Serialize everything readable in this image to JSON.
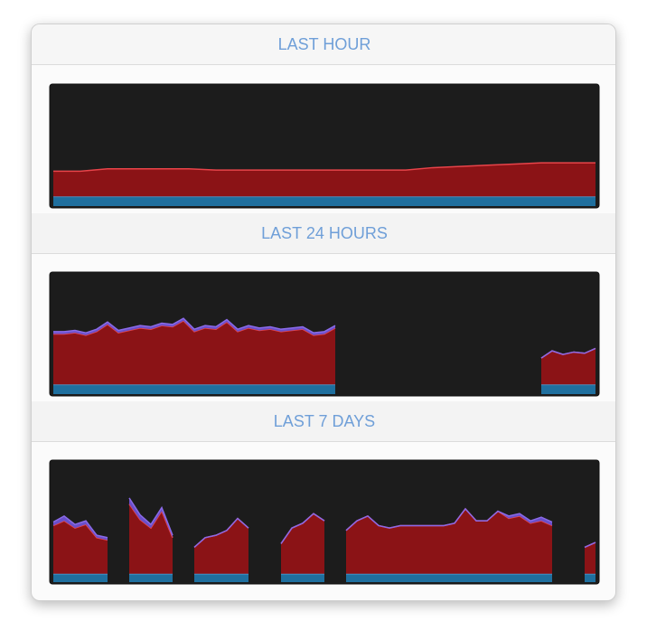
{
  "chart_data": [
    {
      "type": "area",
      "title": "LAST HOUR",
      "stacked": true,
      "ylim": [
        0,
        100
      ],
      "x": [
        0,
        5,
        10,
        15,
        20,
        25,
        30,
        35,
        40,
        45,
        50,
        55,
        60,
        65,
        70,
        75,
        80,
        85,
        90,
        95,
        100
      ],
      "series": [
        {
          "color": "#1f6f9e",
          "line_color": "#4aa3d9",
          "values": [
            8,
            8,
            8,
            8,
            8,
            8,
            8,
            8,
            8,
            8,
            8,
            8,
            8,
            8,
            8,
            8,
            8,
            8,
            8,
            8,
            8
          ]
        },
        {
          "color": "#8b1316",
          "line_color": "#e8444a",
          "values": [
            21,
            21,
            23,
            23,
            23,
            23,
            22,
            22,
            22,
            22,
            22,
            22,
            22,
            22,
            24,
            25,
            26,
            27,
            28,
            28,
            28
          ]
        }
      ]
    },
    {
      "type": "area",
      "title": "LAST 24 HOURS",
      "stacked": true,
      "ylim": [
        0,
        100
      ],
      "x": [
        0,
        2,
        4,
        6,
        8,
        10,
        12,
        14,
        16,
        18,
        20,
        22,
        24,
        26,
        28,
        30,
        32,
        34,
        36,
        38,
        40,
        42,
        44,
        46,
        48,
        50,
        52,
        54,
        56,
        58,
        60,
        62,
        64,
        66,
        68,
        70,
        72,
        74,
        76,
        78,
        80,
        82,
        84,
        86,
        88,
        90,
        92,
        94,
        96,
        98,
        100
      ],
      "series": [
        {
          "color": "#1f6f9e",
          "line_color": "#4aa3d9",
          "values": [
            8,
            8,
            8,
            8,
            8,
            8,
            8,
            8,
            8,
            8,
            8,
            8,
            8,
            8,
            8,
            8,
            8,
            8,
            8,
            8,
            8,
            8,
            8,
            8,
            8,
            8,
            8,
            null,
            null,
            null,
            null,
            null,
            null,
            null,
            null,
            null,
            null,
            null,
            null,
            null,
            null,
            null,
            null,
            null,
            null,
            8,
            8,
            8,
            8,
            8,
            8
          ]
        },
        {
          "color": "#8b1316",
          "line_color": "#e8444a",
          "values": [
            42,
            42,
            43,
            41,
            44,
            50,
            43,
            45,
            47,
            46,
            49,
            48,
            53,
            44,
            47,
            46,
            52,
            44,
            47,
            45,
            46,
            44,
            45,
            46,
            41,
            42,
            47,
            null,
            null,
            null,
            null,
            null,
            null,
            null,
            null,
            null,
            null,
            null,
            null,
            null,
            null,
            null,
            null,
            null,
            null,
            22,
            28,
            25,
            27,
            26,
            30
          ]
        },
        {
          "color": "#6a4fc9",
          "line_color": "#8a6ae8",
          "values": [
            2,
            2,
            2,
            2,
            2,
            2,
            2,
            2,
            2,
            2,
            2,
            2,
            2,
            2,
            2,
            2,
            2,
            2,
            2,
            2,
            2,
            2,
            2,
            2,
            2,
            2,
            2,
            null,
            null,
            null,
            null,
            null,
            null,
            null,
            null,
            null,
            null,
            null,
            null,
            null,
            null,
            null,
            null,
            null,
            null,
            0,
            0,
            0,
            0,
            0,
            0
          ]
        }
      ]
    },
    {
      "type": "area",
      "title": "LAST 7 DAYS",
      "stacked": true,
      "ylim": [
        0,
        100
      ],
      "x": [
        0,
        2,
        4,
        6,
        8,
        10,
        12,
        14,
        16,
        18,
        20,
        22,
        24,
        26,
        28,
        30,
        32,
        34,
        36,
        38,
        40,
        42,
        44,
        46,
        48,
        50,
        52,
        54,
        56,
        58,
        60,
        62,
        64,
        66,
        68,
        70,
        72,
        74,
        76,
        78,
        80,
        82,
        84,
        86,
        88,
        90,
        92,
        94,
        96,
        98,
        100
      ],
      "series": [
        {
          "color": "#1f6f9e",
          "line_color": "#4aa3d9",
          "values": [
            7,
            7,
            7,
            7,
            7,
            7,
            null,
            7,
            7,
            7,
            7,
            7,
            null,
            7,
            7,
            7,
            7,
            7,
            7,
            null,
            null,
            7,
            7,
            7,
            7,
            7,
            null,
            7,
            7,
            7,
            7,
            7,
            7,
            7,
            7,
            7,
            7,
            7,
            7,
            7,
            7,
            7,
            7,
            7,
            7,
            7,
            7,
            null,
            null,
            7,
            7
          ]
        },
        {
          "color": "#8b1316",
          "line_color": "#e8444a",
          "values": [
            40,
            44,
            38,
            41,
            30,
            28,
            null,
            58,
            45,
            38,
            52,
            30,
            null,
            22,
            30,
            32,
            36,
            46,
            38,
            null,
            null,
            25,
            38,
            42,
            50,
            44,
            null,
            36,
            44,
            48,
            40,
            38,
            40,
            40,
            40,
            40,
            40,
            42,
            54,
            44,
            44,
            52,
            46,
            48,
            42,
            44,
            40,
            null,
            null,
            22,
            26
          ]
        },
        {
          "color": "#6a4fc9",
          "line_color": "#8a6ae8",
          "values": [
            3,
            4,
            3,
            3,
            2,
            2,
            null,
            5,
            4,
            3,
            3,
            2,
            null,
            0,
            0,
            0,
            0,
            0,
            0,
            null,
            null,
            0,
            0,
            0,
            0,
            0,
            null,
            0,
            0,
            0,
            0,
            0,
            0,
            0,
            0,
            0,
            0,
            0,
            0,
            0,
            0,
            0,
            2,
            2,
            2,
            3,
            3,
            null,
            null,
            0,
            0
          ]
        }
      ]
    }
  ]
}
